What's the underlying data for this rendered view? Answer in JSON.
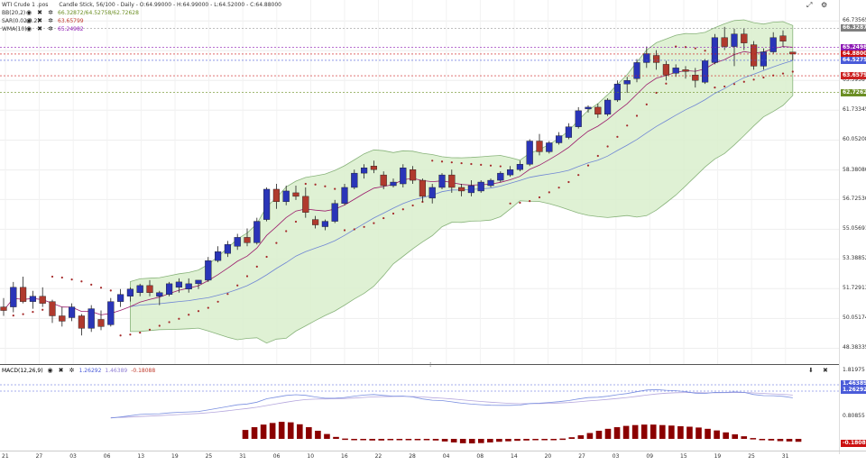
{
  "legend": {
    "title": "WTI Crude 1 .pos",
    "chart_info": "Candle Stick, 56/100 - Daily - O:64.99000 - H:64.99000 - L:64.52000 - C:64.88000",
    "bb": "BB(20,2)",
    "bb_values": "66.32872/64.52758/62.72628",
    "sar": "SAR(0.02,0.2)",
    "sar_value": "63.65799",
    "wma": "WMA(10)",
    "wma_value": "65.24982"
  },
  "macd_legend": {
    "label": "MACD(12,26,9)",
    "v1": "1.26292",
    "v2": "1.46389",
    "v3": "-0.18088"
  },
  "y_axis_main": [
    "66.73565",
    "65.06793",
    "63.39587",
    "61.73345",
    "60.05208",
    "58.38080",
    "56.72530",
    "55.05691",
    "53.38852",
    "51.72913",
    "50.05174",
    "48.38335"
  ],
  "price_tags": [
    {
      "value": "66.32872",
      "color": "#7f7f7f"
    },
    {
      "value": "65.24982",
      "color": "#8e1ab5"
    },
    {
      "value": "64.88000",
      "color": "#cc1111"
    },
    {
      "value": "64.52758",
      "color": "#4a5bd9"
    },
    {
      "value": "63.65799",
      "color": "#cc2222"
    },
    {
      "value": "62.72628",
      "color": "#6b8e23"
    }
  ],
  "y_axis_macd": [
    "1.81975",
    "0.80855"
  ],
  "macd_tags": [
    {
      "value": "1.46389",
      "color": "#4a5bd9"
    },
    {
      "value": "1.26292",
      "color": "#4a5bd9"
    },
    {
      "value": "-0.18088",
      "color": "#cc1111"
    }
  ],
  "x_labels": [
    "21",
    "27",
    "03",
    "06",
    "13",
    "19",
    "25",
    "31",
    "06",
    "10",
    "16",
    "22",
    "28",
    "04",
    "08",
    "14",
    "20",
    "27",
    "03",
    "09",
    "15",
    "19",
    "25",
    "31"
  ],
  "colors": {
    "up": "#2a35b8",
    "down": "#b03a2e",
    "band_fill": "#d9efcc",
    "band_line": "#88b37a",
    "sar": "#a52a2a",
    "wma": "#9b1a6b",
    "bb_mid": "#6f86d4",
    "macd_line": "#7a8fe0",
    "signal_line": "#b4a6dd",
    "hist": "#8b0000"
  },
  "chart_data": {
    "type": "candlestick",
    "title": "WTI Crude 1 .pos",
    "ylim": [
      47.8,
      67.2
    ],
    "ohlc": [
      [
        50.7,
        51.2,
        50.2,
        50.5
      ],
      [
        50.7,
        52.1,
        50.4,
        51.8
      ],
      [
        51.8,
        52.4,
        50.9,
        51.0
      ],
      [
        51.0,
        51.6,
        50.6,
        51.3
      ],
      [
        51.3,
        51.8,
        50.7,
        50.9
      ],
      [
        51.0,
        51.1,
        49.8,
        50.2
      ],
      [
        50.2,
        50.7,
        49.6,
        49.9
      ],
      [
        50.1,
        50.9,
        49.9,
        50.7
      ],
      [
        50.2,
        50.3,
        49.1,
        49.5
      ],
      [
        49.5,
        50.8,
        49.3,
        50.6
      ],
      [
        50.0,
        50.5,
        49.4,
        49.6
      ],
      [
        49.7,
        51.2,
        49.6,
        51.0
      ],
      [
        51.0,
        51.7,
        50.7,
        51.4
      ],
      [
        51.3,
        51.8,
        51.0,
        51.7
      ],
      [
        51.5,
        52.0,
        51.3,
        51.9
      ],
      [
        51.9,
        52.2,
        51.3,
        51.5
      ],
      [
        51.3,
        51.6,
        50.8,
        51.5
      ],
      [
        51.4,
        52.1,
        51.3,
        52.0
      ],
      [
        51.8,
        52.3,
        51.5,
        52.1
      ],
      [
        51.7,
        52.3,
        51.5,
        52.0
      ],
      [
        52.0,
        52.2,
        51.7,
        52.2
      ],
      [
        52.2,
        53.5,
        52.1,
        53.3
      ],
      [
        53.3,
        54.1,
        53.2,
        53.8
      ],
      [
        53.7,
        54.4,
        53.5,
        54.2
      ],
      [
        54.1,
        54.8,
        53.9,
        54.6
      ],
      [
        54.6,
        55.1,
        54.1,
        54.3
      ],
      [
        54.3,
        55.7,
        54.2,
        55.5
      ],
      [
        55.6,
        57.4,
        55.5,
        57.3
      ],
      [
        57.3,
        57.6,
        56.2,
        56.6
      ],
      [
        56.6,
        57.5,
        56.4,
        57.2
      ],
      [
        57.1,
        57.5,
        56.7,
        56.9
      ],
      [
        56.9,
        57.4,
        55.7,
        56.0
      ],
      [
        55.6,
        55.8,
        55.1,
        55.3
      ],
      [
        55.2,
        55.6,
        55.0,
        55.5
      ],
      [
        55.5,
        56.7,
        55.4,
        56.5
      ],
      [
        56.5,
        57.6,
        56.4,
        57.4
      ],
      [
        57.4,
        58.4,
        57.3,
        58.2
      ],
      [
        58.2,
        58.7,
        57.9,
        58.5
      ],
      [
        58.6,
        58.9,
        58.2,
        58.4
      ],
      [
        58.1,
        58.3,
        57.3,
        57.5
      ],
      [
        57.5,
        57.9,
        57.4,
        57.7
      ],
      [
        57.6,
        58.7,
        57.4,
        58.5
      ],
      [
        58.4,
        58.6,
        57.6,
        57.8
      ],
      [
        57.8,
        57.9,
        56.6,
        56.9
      ],
      [
        56.8,
        57.6,
        56.5,
        57.4
      ],
      [
        57.4,
        58.2,
        57.3,
        58.1
      ],
      [
        58.1,
        58.4,
        57.1,
        57.4
      ],
      [
        57.4,
        57.6,
        56.9,
        57.2
      ],
      [
        57.1,
        57.8,
        56.9,
        57.5
      ],
      [
        57.2,
        57.8,
        57.1,
        57.7
      ],
      [
        57.5,
        57.9,
        57.4,
        57.8
      ],
      [
        57.8,
        58.3,
        57.7,
        58.2
      ],
      [
        58.1,
        58.6,
        58.0,
        58.4
      ],
      [
        58.4,
        58.9,
        58.3,
        58.7
      ],
      [
        58.7,
        60.1,
        58.6,
        60.0
      ],
      [
        60.0,
        60.4,
        59.2,
        59.4
      ],
      [
        59.4,
        60.0,
        59.3,
        59.9
      ],
      [
        59.9,
        60.5,
        59.8,
        60.3
      ],
      [
        60.2,
        61.0,
        60.1,
        60.8
      ],
      [
        60.8,
        61.9,
        60.7,
        61.7
      ],
      [
        61.8,
        62.0,
        61.6,
        61.9
      ],
      [
        61.9,
        62.1,
        61.3,
        61.5
      ],
      [
        61.5,
        62.4,
        61.4,
        62.3
      ],
      [
        62.3,
        63.4,
        62.2,
        63.2
      ],
      [
        63.2,
        63.6,
        62.7,
        63.4
      ],
      [
        63.5,
        64.6,
        63.3,
        64.4
      ],
      [
        64.4,
        65.3,
        64.1,
        64.9
      ],
      [
        64.8,
        65.1,
        64.0,
        64.4
      ],
      [
        64.3,
        64.5,
        63.4,
        63.7
      ],
      [
        63.8,
        64.3,
        63.6,
        64.1
      ],
      [
        64.0,
        64.2,
        63.5,
        63.9
      ],
      [
        63.7,
        64.1,
        63.0,
        63.4
      ],
      [
        63.3,
        64.6,
        63.2,
        64.5
      ],
      [
        64.4,
        66.0,
        64.3,
        65.8
      ],
      [
        65.8,
        66.4,
        65.1,
        65.3
      ],
      [
        65.3,
        66.3,
        64.2,
        66.0
      ],
      [
        66.0,
        66.3,
        65.1,
        65.5
      ],
      [
        65.4,
        65.6,
        64.0,
        64.2
      ],
      [
        64.2,
        65.2,
        64.0,
        65.0
      ],
      [
        65.0,
        66.1,
        64.9,
        65.8
      ],
      [
        65.9,
        66.2,
        65.3,
        65.6
      ],
      [
        64.99,
        64.99,
        64.52,
        64.88
      ]
    ],
    "macd_hist": [
      0.55,
      0.72,
      0.88,
      0.98,
      1.05,
      1.02,
      0.9,
      0.72,
      0.5,
      0.3,
      0.12,
      0.02,
      -0.05,
      -0.08,
      -0.1,
      -0.1,
      -0.08,
      -0.06,
      -0.04,
      -0.04,
      -0.06,
      -0.1,
      -0.16,
      -0.22,
      -0.27,
      -0.28,
      -0.26,
      -0.22,
      -0.18,
      -0.15,
      -0.12,
      -0.1,
      -0.08,
      -0.05,
      -0.03,
      0.02,
      0.1,
      0.22,
      0.36,
      0.5,
      0.62,
      0.72,
      0.8,
      0.85,
      0.88,
      0.88,
      0.85,
      0.82,
      0.78,
      0.75,
      0.7,
      0.62,
      0.52,
      0.4,
      0.28,
      0.16,
      0.05,
      -0.04,
      -0.1,
      -0.14,
      -0.16,
      -0.18
    ]
  }
}
